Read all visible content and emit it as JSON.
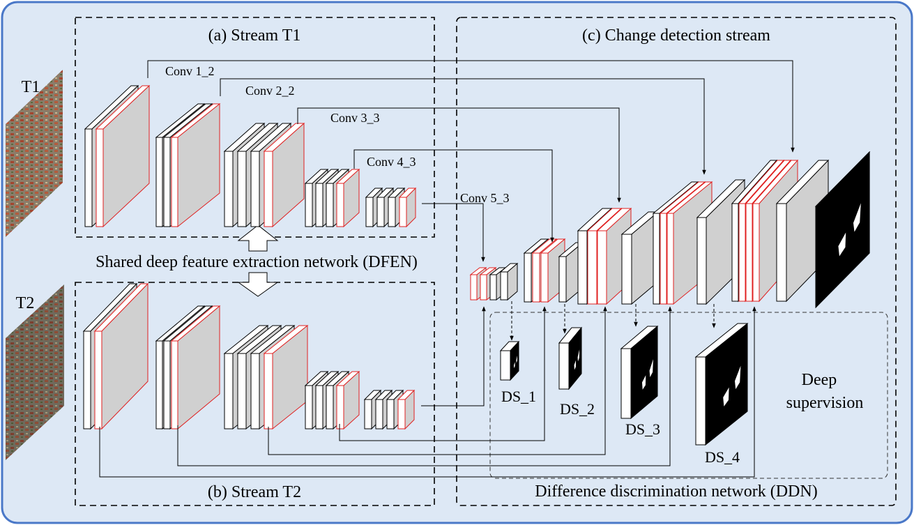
{
  "figure": {
    "stream_t1_title": "(a) Stream T1",
    "stream_t2_title": "(b) Stream T2",
    "cd_stream_title": "(c) Change detection stream",
    "shared_network_label": "Shared deep feature extraction network (DFEN)",
    "ddn_label": "Difference discrimination network (DDN)",
    "deep_supervision_line1": "Deep",
    "deep_supervision_line2": "supervision",
    "input_t1_label": "T1",
    "input_t2_label": "T2",
    "conv_labels": [
      "Conv 1_2",
      "Conv 2_2",
      "Conv 3_3",
      "Conv 4_3",
      "Conv 5_3"
    ],
    "ds_labels": [
      "DS_1",
      "DS_2",
      "DS_3",
      "DS_4"
    ]
  },
  "colors": {
    "panel_bg": "#dde8f5",
    "panel_border": "#4a78c8",
    "feature_face": "#d0d0d0",
    "highlight_edge": "#e02020",
    "mask_black": "#000000"
  }
}
